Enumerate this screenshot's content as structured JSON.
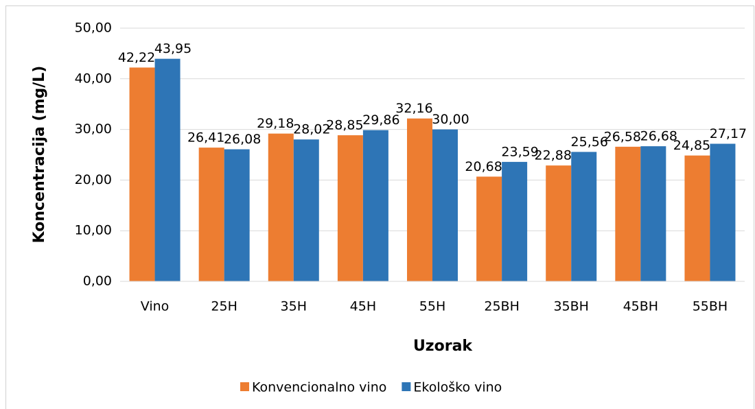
{
  "chart_data": {
    "type": "bar",
    "categories": [
      "Vino",
      "25H",
      "35H",
      "45H",
      "55H",
      "25BH",
      "35BH",
      "45BH",
      "55BH"
    ],
    "series": [
      {
        "name": "Konvencionalno vino",
        "color": "#ed7d31",
        "values": [
          42.22,
          26.41,
          29.18,
          28.85,
          32.16,
          20.68,
          22.88,
          26.58,
          24.85
        ],
        "value_labels": [
          "42,22",
          "26,41",
          "29,18",
          "28,85",
          "32,16",
          "20,68",
          "22,88",
          "26,58",
          "24,85"
        ]
      },
      {
        "name": "Ekološko vino",
        "color": "#2e75b6",
        "values": [
          43.95,
          26.08,
          28.02,
          29.86,
          30.0,
          23.59,
          25.56,
          26.68,
          27.17
        ],
        "value_labels": [
          "43,95",
          "26,08",
          "28,02",
          "29,86",
          "30,00",
          "23,59",
          "25,56",
          "26,68",
          "27,17"
        ]
      }
    ],
    "xlabel": "Uzorak",
    "ylabel": "Koncentracija (mg/L)",
    "ylim": [
      0,
      50
    ],
    "yticks": [
      {
        "value": 0,
        "label": "0,00"
      },
      {
        "value": 10,
        "label": "10,00"
      },
      {
        "value": 20,
        "label": "20,00"
      },
      {
        "value": 30,
        "label": "30,00"
      },
      {
        "value": 40,
        "label": "40,00"
      },
      {
        "value": 50,
        "label": "50,00"
      }
    ],
    "grid": true,
    "legend": "bottom"
  }
}
